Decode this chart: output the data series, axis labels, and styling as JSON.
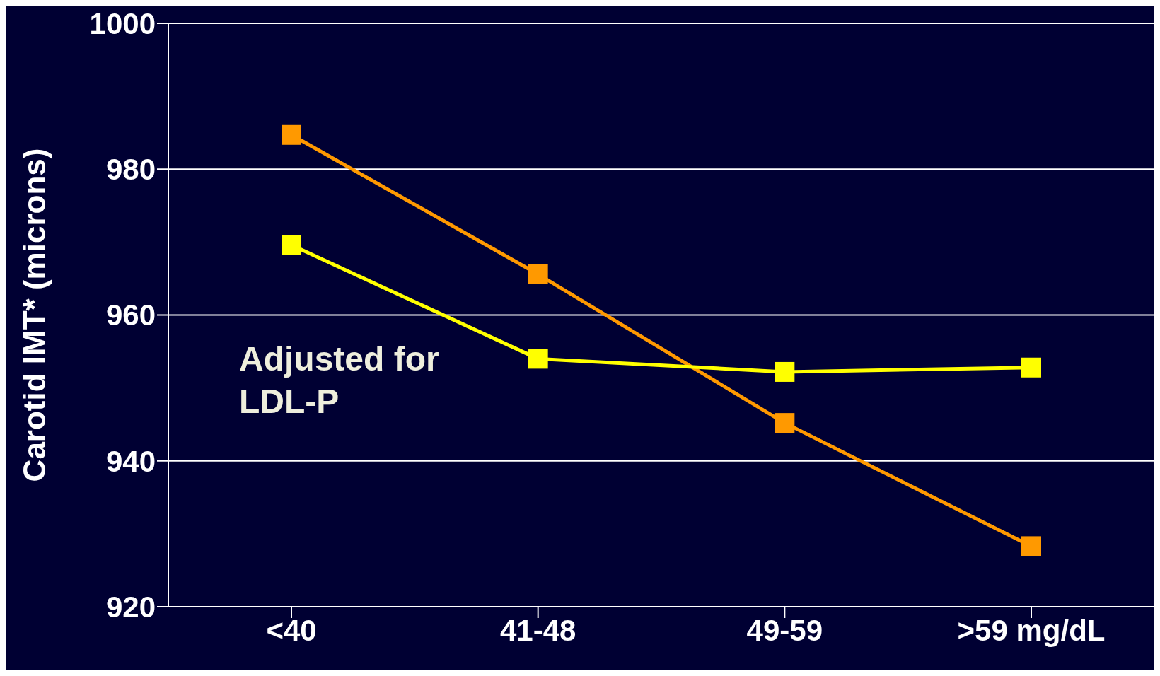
{
  "chart_data": {
    "type": "line",
    "ylabel": "Carotid IMT* (microns)",
    "categories": [
      "<40",
      "41-48",
      "49-59",
      ">59 mg/dL"
    ],
    "series": [
      {
        "color": "#ff9900",
        "values": [
          984.7,
          965.6,
          945.2,
          928.3
        ]
      },
      {
        "color": "#ffff00",
        "values": [
          969.6,
          954.0,
          952.2,
          952.8
        ]
      }
    ],
    "ylim": [
      920,
      1000
    ],
    "yticks": [
      920,
      940,
      960,
      980,
      1000
    ],
    "grid": "y",
    "legend": false,
    "marker": "square",
    "line_style": "solid",
    "annotations": [
      "Adjusted for LDL-P"
    ]
  }
}
